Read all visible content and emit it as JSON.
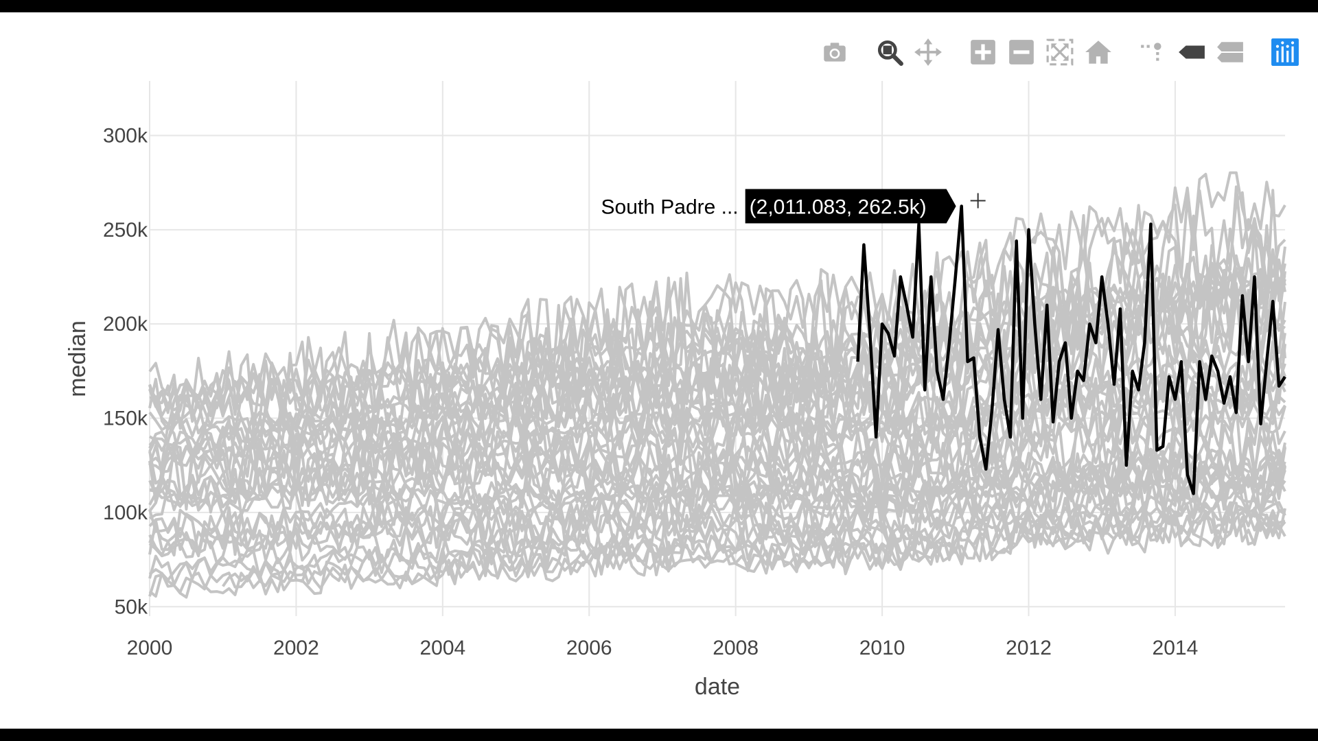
{
  "modebar": {
    "buttons": [
      {
        "icon": "camera-icon",
        "tooltip": "Download plot as a png"
      },
      {
        "icon": "zoom-icon",
        "tooltip": "Zoom",
        "active": true
      },
      {
        "icon": "pan-icon",
        "tooltip": "Pan"
      },
      {
        "icon": "zoom-in-icon",
        "tooltip": "Zoom in"
      },
      {
        "icon": "zoom-out-icon",
        "tooltip": "Zoom out"
      },
      {
        "icon": "autoscale-icon",
        "tooltip": "Autoscale"
      },
      {
        "icon": "reset-axes-icon",
        "tooltip": "Reset axes"
      },
      {
        "icon": "spike-lines-icon",
        "tooltip": "Toggle Spike Lines"
      },
      {
        "icon": "hover-closest-icon",
        "tooltip": "Show closest data on hover"
      },
      {
        "icon": "hover-compare-icon",
        "tooltip": "Compare data on hover"
      },
      {
        "icon": "plotly-logo-icon",
        "tooltip": "Produced with Plotly"
      }
    ]
  },
  "hover": {
    "series_name": "South Padre ...",
    "value_text": "(2,011.083, 262.5k)",
    "x": 2011.083,
    "y": 262500
  },
  "colors": {
    "background_series": "#c4c4c4",
    "highlight_series": "#000000",
    "gridline": "#e6e6e6",
    "modebar_icon": "#b3b3b3",
    "modebar_active": "#444444",
    "plotly_logo": "#1f8cf0"
  },
  "chart_data": {
    "type": "line",
    "xlabel": "date",
    "ylabel": "median",
    "xlim": [
      2000,
      2015.5
    ],
    "ylim": [
      45000,
      318000
    ],
    "x_ticks": [
      2000,
      2002,
      2004,
      2006,
      2008,
      2010,
      2012,
      2014
    ],
    "x_tick_labels": [
      "2000",
      "2002",
      "2004",
      "2006",
      "2008",
      "2010",
      "2012",
      "2014"
    ],
    "y_ticks": [
      50000,
      100000,
      150000,
      200000,
      250000,
      300000
    ],
    "y_tick_labels": [
      "50k",
      "100k",
      "150k",
      "200k",
      "250k",
      "300k"
    ],
    "grid": true,
    "legend": "none",
    "background_series_count": 46,
    "background_series_trend": {
      "start_range": [
        60000,
        160000
      ],
      "end_range": [
        95000,
        300000
      ]
    },
    "highlighted_series": {
      "name": "South Padre ...",
      "points": [
        [
          2009.667,
          180000
        ],
        [
          2009.75,
          242000
        ],
        [
          2009.833,
          195000
        ],
        [
          2009.917,
          140000
        ],
        [
          2010.0,
          200000
        ],
        [
          2010.083,
          195000
        ],
        [
          2010.167,
          183000
        ],
        [
          2010.25,
          225000
        ],
        [
          2010.333,
          210000
        ],
        [
          2010.417,
          193000
        ],
        [
          2010.5,
          253000
        ],
        [
          2010.583,
          165000
        ],
        [
          2010.667,
          225000
        ],
        [
          2010.75,
          175000
        ],
        [
          2010.833,
          160000
        ],
        [
          2010.917,
          190000
        ],
        [
          2011.0,
          225000
        ],
        [
          2011.083,
          262500
        ],
        [
          2011.167,
          180000
        ],
        [
          2011.25,
          182000
        ],
        [
          2011.333,
          140000
        ],
        [
          2011.417,
          123000
        ],
        [
          2011.5,
          155000
        ],
        [
          2011.583,
          197000
        ],
        [
          2011.667,
          160000
        ],
        [
          2011.75,
          140000
        ],
        [
          2011.833,
          244000
        ],
        [
          2011.917,
          150000
        ],
        [
          2012.0,
          250000
        ],
        [
          2012.083,
          200000
        ],
        [
          2012.167,
          160000
        ],
        [
          2012.25,
          210000
        ],
        [
          2012.333,
          148000
        ],
        [
          2012.417,
          180000
        ],
        [
          2012.5,
          190000
        ],
        [
          2012.583,
          150000
        ],
        [
          2012.667,
          175000
        ],
        [
          2012.75,
          170000
        ],
        [
          2012.833,
          200000
        ],
        [
          2012.917,
          190000
        ],
        [
          2013.0,
          225000
        ],
        [
          2013.083,
          200000
        ],
        [
          2013.167,
          168000
        ],
        [
          2013.25,
          208000
        ],
        [
          2013.333,
          125000
        ],
        [
          2013.417,
          175000
        ],
        [
          2013.5,
          165000
        ],
        [
          2013.583,
          190000
        ],
        [
          2013.667,
          253000
        ],
        [
          2013.75,
          133000
        ],
        [
          2013.833,
          135000
        ],
        [
          2013.917,
          172000
        ],
        [
          2014.0,
          160000
        ],
        [
          2014.083,
          180000
        ],
        [
          2014.167,
          120000
        ],
        [
          2014.25,
          110000
        ],
        [
          2014.333,
          180000
        ],
        [
          2014.417,
          160000
        ],
        [
          2014.5,
          183000
        ],
        [
          2014.583,
          175000
        ],
        [
          2014.667,
          158000
        ],
        [
          2014.75,
          172000
        ],
        [
          2014.833,
          153000
        ],
        [
          2014.917,
          215000
        ],
        [
          2015.0,
          180000
        ],
        [
          2015.083,
          225000
        ],
        [
          2015.167,
          147000
        ],
        [
          2015.25,
          180000
        ],
        [
          2015.333,
          212000
        ],
        [
          2015.417,
          167000
        ],
        [
          2015.5,
          172000
        ]
      ]
    }
  }
}
